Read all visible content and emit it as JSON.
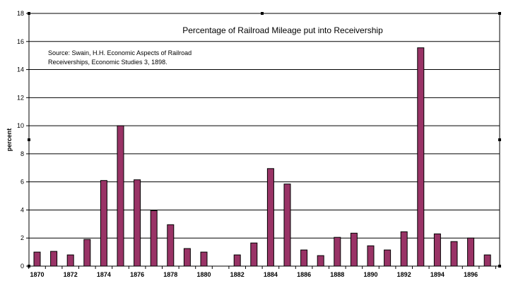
{
  "chart_data": {
    "type": "bar",
    "title": "Percentage of Railroad Mileage put into Receivership",
    "annotation_lines": [
      "Source: Swain, H.H. Economic Aspects of Railroad",
      "Receiverships, Economic Studies 3, 1898."
    ],
    "xlabel": "",
    "ylabel": "percent",
    "ylim": [
      0,
      18
    ],
    "yticks": [
      "0",
      "2",
      "4",
      "6",
      "8",
      "10",
      "12",
      "14",
      "16",
      "18"
    ],
    "categories": [
      "1870",
      "1871",
      "1872",
      "1873",
      "1874",
      "1875",
      "1876",
      "1877",
      "1878",
      "1879",
      "1880",
      "1881",
      "1882",
      "1883",
      "1884",
      "1885",
      "1886",
      "1887",
      "1888",
      "1889",
      "1890",
      "1891",
      "1892",
      "1893",
      "1894",
      "1895",
      "1896",
      "1897"
    ],
    "xtick_labels": [
      "1870",
      "1872",
      "1874",
      "1876",
      "1878",
      "1880",
      "1882",
      "1884",
      "1886",
      "1888",
      "1890",
      "1892",
      "1894",
      "1896"
    ],
    "values": [
      1.0,
      1.05,
      0.8,
      1.9,
      6.1,
      10.0,
      6.15,
      3.95,
      2.95,
      1.25,
      1.0,
      0.0,
      0.8,
      1.65,
      6.95,
      5.85,
      1.15,
      0.75,
      2.05,
      2.35,
      1.45,
      1.15,
      2.45,
      15.55,
      2.3,
      1.75,
      2.0,
      0.8
    ],
    "grid": true,
    "bar_color": "#993366"
  }
}
